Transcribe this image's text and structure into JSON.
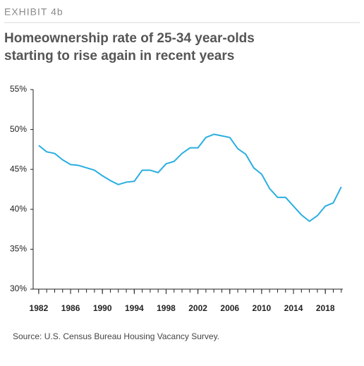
{
  "chart_data": {
    "type": "line",
    "label": "EXHIBIT 4b",
    "title": [
      "Homeownership rate of 25-34 year-olds",
      "starting to rise again in recent years"
    ],
    "source": "Source: U.S. Census Bureau Housing Vacancy Survey.",
    "x": [
      1982,
      1983,
      1984,
      1985,
      1986,
      1987,
      1988,
      1989,
      1990,
      1991,
      1992,
      1993,
      1994,
      1995,
      1996,
      1997,
      1998,
      1999,
      2000,
      2001,
      2002,
      2003,
      2004,
      2005,
      2006,
      2007,
      2008,
      2009,
      2010,
      2011,
      2012,
      2013,
      2014,
      2015,
      2016,
      2017,
      2018,
      2019,
      2020
    ],
    "series": [
      {
        "color": "#2aaee0",
        "values": [
          48.0,
          47.2,
          47.0,
          46.2,
          45.6,
          45.5,
          45.2,
          44.9,
          44.2,
          43.6,
          43.1,
          43.4,
          43.5,
          44.9,
          44.9,
          44.6,
          45.7,
          46.0,
          47.0,
          47.7,
          47.7,
          49.0,
          49.4,
          49.2,
          49.0,
          47.6,
          46.9,
          45.2,
          44.4,
          42.6,
          41.5,
          41.5,
          40.4,
          39.3,
          38.5,
          39.2,
          40.4,
          40.8,
          42.8
        ]
      }
    ],
    "xlim": [
      1981.3,
      2020.2
    ],
    "xticks": [
      1982,
      1986,
      1990,
      1994,
      1998,
      2002,
      2006,
      2010,
      2014,
      2018
    ],
    "ylim": [
      30,
      55
    ],
    "yticks": [
      {
        "value": 30,
        "label": "30%"
      },
      {
        "value": 35,
        "label": "35%"
      },
      {
        "value": 40,
        "label": "40%"
      },
      {
        "value": 45,
        "label": "45%"
      },
      {
        "value": 50,
        "label": "50%"
      },
      {
        "value": 55,
        "label": "55%"
      }
    ]
  }
}
